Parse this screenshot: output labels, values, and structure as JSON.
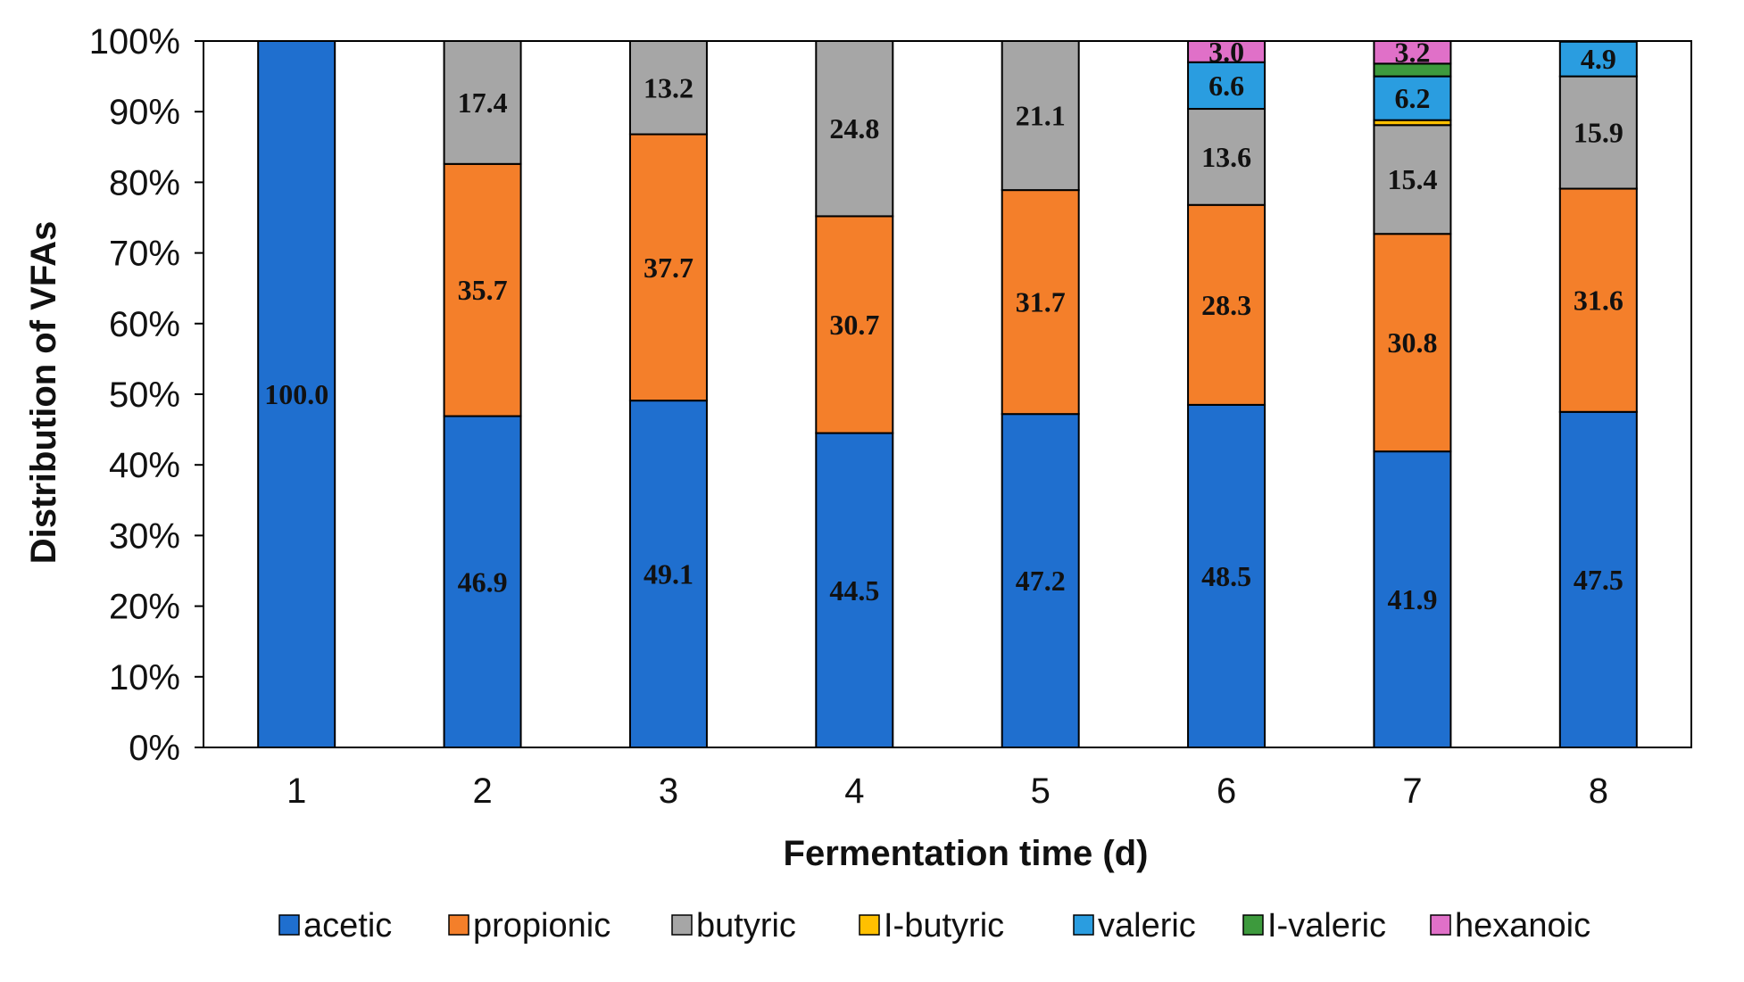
{
  "chart_data": {
    "type": "bar",
    "stacked": true,
    "title": "",
    "xlabel": "Fermentation time (d)",
    "ylabel": "Distribution of VFAs",
    "ylim": [
      0,
      100
    ],
    "y_ticks": [
      "0%",
      "10%",
      "20%",
      "30%",
      "40%",
      "50%",
      "60%",
      "70%",
      "80%",
      "90%",
      "100%"
    ],
    "categories": [
      "1",
      "2",
      "3",
      "4",
      "5",
      "6",
      "7",
      "8"
    ],
    "legend_position": "bottom",
    "series": [
      {
        "name": "acetic",
        "color": "#1f6fcf",
        "values": [
          100.0,
          46.9,
          49.1,
          44.5,
          47.2,
          48.5,
          41.9,
          47.5
        ],
        "labels": [
          "100.0",
          "46.9",
          "49.1",
          "44.5",
          "47.2",
          "48.5",
          "41.9",
          "47.5"
        ]
      },
      {
        "name": "propionic",
        "color": "#f47f2a",
        "values": [
          0,
          35.7,
          37.7,
          30.7,
          31.7,
          28.3,
          30.8,
          31.6
        ],
        "labels": [
          "",
          "35.7",
          "37.7",
          "30.7",
          "31.7",
          "28.3",
          "30.8",
          "31.6"
        ]
      },
      {
        "name": "butyric",
        "color": "#a6a6a6",
        "values": [
          0,
          17.4,
          13.2,
          24.8,
          21.1,
          13.6,
          15.4,
          15.9
        ],
        "labels": [
          "",
          "17.4",
          "13.2",
          "24.8",
          "21.1",
          "13.6",
          "15.4",
          "15.9"
        ]
      },
      {
        "name": "I-butyric",
        "color": "#ffc000",
        "values": [
          0,
          0,
          0,
          0,
          0,
          0,
          0.7,
          0
        ],
        "labels": [
          "",
          "",
          "",
          "",
          "",
          "",
          "",
          ""
        ]
      },
      {
        "name": "valeric",
        "color": "#2a9de0",
        "values": [
          0,
          0,
          0,
          0,
          0,
          6.6,
          6.2,
          4.9
        ],
        "labels": [
          "",
          "",
          "",
          "",
          "",
          "6.6",
          "6.2",
          "4.9"
        ]
      },
      {
        "name": "I-valeric",
        "color": "#3d9a3d",
        "values": [
          0,
          0,
          0,
          0,
          0,
          0,
          1.8,
          0
        ],
        "labels": [
          "",
          "",
          "",
          "",
          "",
          "",
          "",
          ""
        ]
      },
      {
        "name": "hexanoic",
        "color": "#e070c8",
        "values": [
          0,
          0,
          0,
          0,
          0,
          3.0,
          3.2,
          0
        ],
        "labels": [
          "",
          "",
          "",
          "",
          "",
          "3.0",
          "3.2",
          ""
        ]
      }
    ]
  }
}
